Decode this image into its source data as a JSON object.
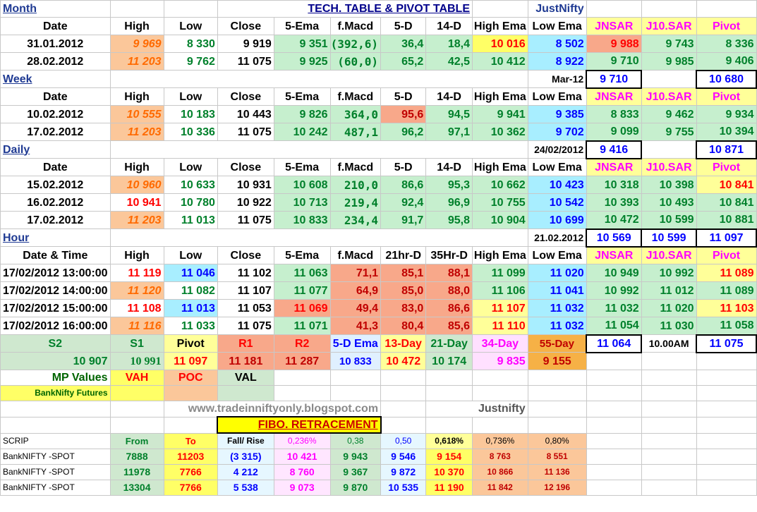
{
  "title": "TECH. TABLE  & PIVOT TABLE",
  "brand": "JustNifty",
  "headers": {
    "date": "Date",
    "date_time": "Date & Time",
    "high": "High",
    "low": "Low",
    "close": "Close",
    "ema5": "5-Ema",
    "fmacd": "f.Macd",
    "d5": "5-D",
    "d14": "14-D",
    "hr21": "21hr-D",
    "hr35": "35Hr-D",
    "high_ema": "High Ema",
    "low_ema": "Low Ema",
    "jnsar": "JNSAR",
    "j10sar": "J10.SAR",
    "pivot": "Pivot"
  },
  "month": {
    "label": "Month",
    "rows": [
      {
        "date": "31.01.2012",
        "high": "9 969",
        "low": "8 330",
        "close": "9 919",
        "ema5": "9 351",
        "fmacd": "(392,6)",
        "d5": "36,4",
        "d14": "18,4",
        "hema": "10 016",
        "lema": "8 502",
        "jnsar": "9 988",
        "j10": "9 743",
        "pivot": "8 336"
      },
      {
        "date": "28.02.2012",
        "high": "11 203",
        "low": "9 762",
        "close": "11 075",
        "ema5": "9 925",
        "fmacd": "(60,0)",
        "d5": "65,2",
        "d14": "42,5",
        "hema": "10 412",
        "lema": "8 922",
        "jnsar": "9 710",
        "j10": "9 985",
        "pivot": "9 406"
      }
    ]
  },
  "week": {
    "label": "Week",
    "period": "Mar-12",
    "box_a": "9 710",
    "box_b": "10 680",
    "rows": [
      {
        "date": "10.02.2012",
        "high": "10 555",
        "low": "10 183",
        "close": "10 443",
        "ema5": "9 826",
        "fmacd": "364,0",
        "d5": "95,6",
        "d14": "94,5",
        "hema": "9 941",
        "lema": "9 385",
        "jnsar": "8 833",
        "j10": "9 462",
        "pivot": "9 934"
      },
      {
        "date": "17.02.2012",
        "high": "11 203",
        "low": "10 336",
        "close": "11 075",
        "ema5": "10 242",
        "fmacd": "487,1",
        "d5": "96,2",
        "d14": "97,1",
        "hema": "10 362",
        "lema": "9 702",
        "jnsar": "9 099",
        "j10": "9 755",
        "pivot": "10 394"
      }
    ]
  },
  "daily": {
    "label": "Daily",
    "period": "24/02/2012",
    "box_a": "9 416",
    "box_b": "10 871",
    "rows": [
      {
        "date": "15.02.2012",
        "high": "10 960",
        "low": "10 633",
        "close": "10 931",
        "ema5": "10 608",
        "fmacd": "210,0",
        "d5": "86,6",
        "d14": "95,3",
        "hema": "10 662",
        "lema": "10 423",
        "jnsar": "10 318",
        "j10": "10 398",
        "pivot": "10 841"
      },
      {
        "date": "16.02.2012",
        "high": "10 941",
        "low": "10 780",
        "close": "10 922",
        "ema5": "10 713",
        "fmacd": "219,4",
        "d5": "92,4",
        "d14": "96,9",
        "hema": "10 755",
        "lema": "10 542",
        "jnsar": "10 393",
        "j10": "10 493",
        "pivot": "10 841"
      },
      {
        "date": "17.02.2012",
        "high": "11 203",
        "low": "11 013",
        "close": "11 075",
        "ema5": "10 833",
        "fmacd": "234,4",
        "d5": "91,7",
        "d14": "95,8",
        "hema": "10 904",
        "lema": "10 699",
        "jnsar": "10 472",
        "j10": "10 599",
        "pivot": "10 881"
      }
    ]
  },
  "hour": {
    "label": "Hour",
    "period": "21.02.2012",
    "box_a": "10 569",
    "box_b": "10 599",
    "box_c": "11 097",
    "rows": [
      {
        "date": "17/02/2012 13:00:00",
        "high": "11 119",
        "low": "11 046",
        "close": "11 102",
        "ema5": "11 063",
        "fmacd": "71,1",
        "d5": "85,1",
        "d14": "88,1",
        "hema": "11 099",
        "lema": "11 020",
        "jnsar": "10 949",
        "j10": "10 992",
        "pivot": "11 089"
      },
      {
        "date": "17/02/2012 14:00:00",
        "high": "11 120",
        "low": "11 082",
        "close": "11 107",
        "ema5": "11 077",
        "fmacd": "64,9",
        "d5": "85,0",
        "d14": "88,0",
        "hema": "11 106",
        "lema": "11 041",
        "jnsar": "10 992",
        "j10": "11 012",
        "pivot": "11 089"
      },
      {
        "date": "17/02/2012 15:00:00",
        "high": "11 108",
        "low": "11 013",
        "close": "11 053",
        "ema5": "11 069",
        "fmacd": "49,4",
        "d5": "83,0",
        "d14": "86,6",
        "hema": "11 107",
        "lema": "11 032",
        "jnsar": "11 032",
        "j10": "11 020",
        "pivot": "11 103"
      },
      {
        "date": "17/02/2012 16:00:00",
        "high": "11 116",
        "low": "11 033",
        "close": "11 075",
        "ema5": "11 071",
        "fmacd": "41,3",
        "d5": "80,4",
        "d14": "85,6",
        "hema": "11 110",
        "lema": "11 032",
        "jnsar": "11 054",
        "j10": "11 030",
        "pivot": "11 058"
      }
    ]
  },
  "levels": {
    "labels": [
      "S2",
      "S1",
      "Pivot",
      "R1",
      "R2",
      "5-D Ema",
      "13-Day",
      "21-Day",
      "34-Day",
      "55-Day"
    ],
    "values": [
      "10 907",
      "10 991",
      "11 097",
      "11 181",
      "11 287",
      "10 833",
      "10 472",
      "10 174",
      "9 835",
      "9 155"
    ],
    "box_a": "11 064",
    "time": "10.00AM",
    "box_b": "11 075"
  },
  "mp": {
    "label": "MP Values",
    "vah": "VAH",
    "poc": "POC",
    "val": "VAL",
    "futures": "BankNifty Futures"
  },
  "website": "www.tradeinniftyonly.blogspot.com",
  "justnifty": "Justnifty",
  "fibo": {
    "title": "FIBO. RETRACEMENT",
    "headers": [
      "SCRIP",
      "From",
      "To",
      "Fall/ Rise",
      "0,236%",
      "0,38",
      "0,50",
      "0,618%",
      "0,736%",
      "0,80%"
    ],
    "rows": [
      [
        "BankNIFTY -SPOT",
        "7888",
        "11203",
        "(3 315)",
        "10 421",
        "9 943",
        "9 546",
        "9 154",
        "8 763",
        "8 551"
      ],
      [
        "BankNIFTY -SPOT",
        "11978",
        "7766",
        "4 212",
        "8 760",
        "9 367",
        "9 872",
        "10 370",
        "10 866",
        "11 136"
      ],
      [
        "BankNIFTY -SPOT",
        "13304",
        "7766",
        "5 538",
        "9 073",
        "9 870",
        "10 535",
        "11 190",
        "11 842",
        "12 196"
      ]
    ]
  },
  "colors": {
    "green": "#00802b",
    "red": "#ff0000",
    "blue": "#0000ff",
    "orange": "#ff6a00",
    "magenta": "#ff00ff"
  }
}
